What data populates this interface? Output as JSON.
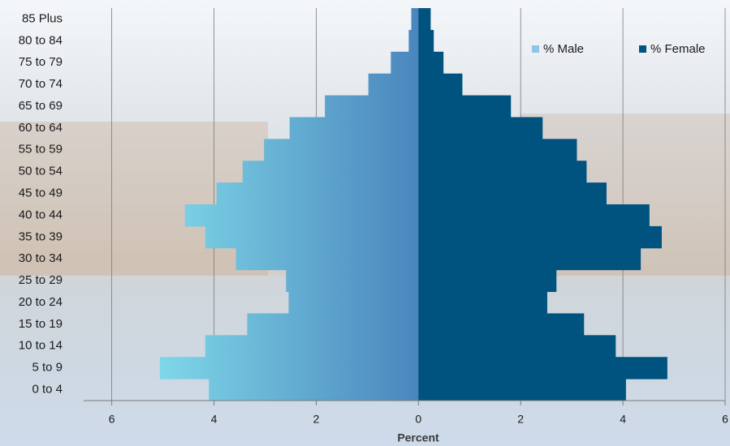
{
  "chart_data": {
    "type": "pyramid",
    "categories": [
      "85 Plus",
      "80 to 84",
      "75 to 79",
      "70 to 74",
      "65 to 69",
      "60 to 64",
      "55 to 59",
      "50 to 54",
      "45 to 49",
      "40 to 44",
      "35 to 39",
      "30 to 34",
      "25 to 29",
      "20 to 24",
      "15 to 19",
      "10 to 14",
      "5 to 9",
      "0 to 4"
    ],
    "series": [
      {
        "name": "% Male",
        "color": "#8ec5e8",
        "values": [
          -0.14,
          -0.19,
          -0.54,
          -0.98,
          -1.83,
          -2.52,
          -3.02,
          -3.44,
          -3.95,
          -4.57,
          -4.17,
          -3.57,
          -2.59,
          -2.54,
          -3.35,
          -4.17,
          -5.06,
          -4.1
        ]
      },
      {
        "name": "% Female",
        "color": "#00527f",
        "values": [
          0.24,
          0.3,
          0.49,
          0.86,
          1.81,
          2.43,
          3.1,
          3.29,
          3.68,
          4.52,
          4.76,
          4.35,
          2.7,
          2.52,
          3.24,
          3.86,
          4.87,
          4.06
        ]
      }
    ],
    "xlabel": "Percent",
    "xlim": [
      -6.55,
      6
    ],
    "xticks": [
      {
        "value": -6,
        "label": "6"
      },
      {
        "value": -4,
        "label": "4"
      },
      {
        "value": -2,
        "label": "2"
      },
      0,
      2,
      4,
      6
    ],
    "grid": true,
    "legend": "top-right"
  }
}
